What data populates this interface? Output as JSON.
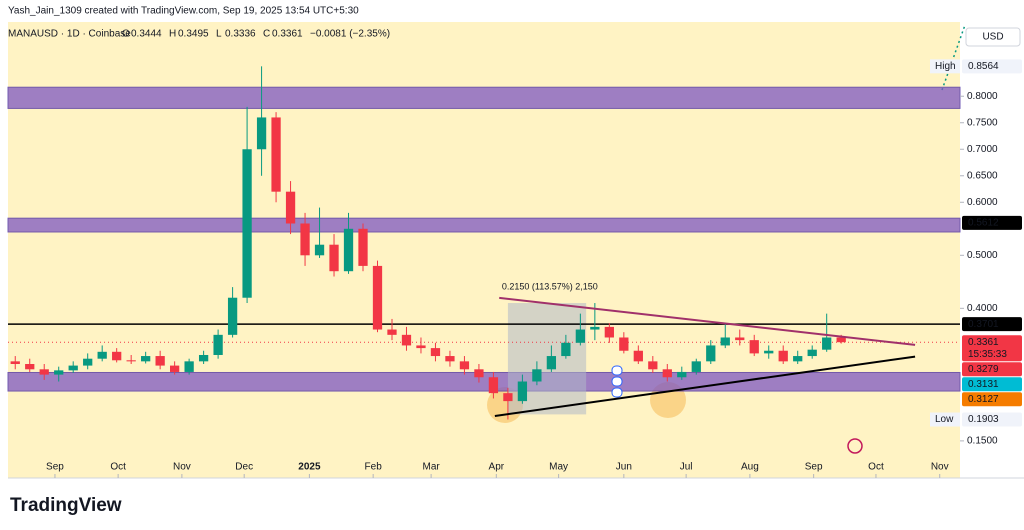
{
  "header": {
    "credit": "Yash_Jain_1309 created with TradingView.com, Sep 19, 2025 13:54 UTC+5:30",
    "symbol": "MANAUSD · 1D · Coinbase",
    "ohlc": [
      {
        "label": "O",
        "value": 0.3444
      },
      {
        "label": "H",
        "value": 0.3495
      },
      {
        "label": "L",
        "value": 0.3336
      },
      {
        "label": "C",
        "value": 0.3361
      }
    ],
    "change": "−0.0081 (−2.35%)"
  },
  "chart_data": {
    "type": "candlestick",
    "currency": "USD",
    "xlim": [
      0,
      65.7
    ],
    "ylim": [
      0.08,
      0.94
    ],
    "xticks": [
      {
        "value": 3.24,
        "label": "Sep"
      },
      {
        "value": 7.6,
        "label": "Oct"
      },
      {
        "value": 12.0,
        "label": "Nov"
      },
      {
        "value": 16.3,
        "label": "Dec"
      },
      {
        "value": 20.8,
        "label": "2025"
      },
      {
        "value": 25.2,
        "label": "Feb"
      },
      {
        "value": 29.2,
        "label": "Mar"
      },
      {
        "value": 33.7,
        "label": "Apr"
      },
      {
        "value": 38.0,
        "label": "May"
      },
      {
        "value": 42.5,
        "label": "Jun"
      },
      {
        "value": 46.8,
        "label": "Jul"
      },
      {
        "value": 51.2,
        "label": "Aug"
      },
      {
        "value": 55.6,
        "label": "Sep"
      },
      {
        "value": 59.9,
        "label": "Oct"
      },
      {
        "value": 64.3,
        "label": "Nov"
      }
    ],
    "yticks": [
      {
        "value": 0.15,
        "label": "0.1500"
      },
      {
        "value": 0.4,
        "label": "0.4000"
      },
      {
        "value": 0.5,
        "label": "0.5000"
      },
      {
        "value": 0.6,
        "label": "0.6000"
      },
      {
        "value": 0.65,
        "label": "0.6500"
      },
      {
        "value": 0.7,
        "label": "0.7000"
      },
      {
        "value": 0.75,
        "label": "0.7500"
      },
      {
        "value": 0.8,
        "label": "0.8000"
      }
    ],
    "up_color": "#089981",
    "down_color": "#f23645",
    "open": [
      0.3,
      0.295,
      0.285,
      0.275,
      0.283,
      0.292,
      0.305,
      0.318,
      0.302,
      0.3,
      0.31,
      0.292,
      0.28,
      0.3,
      0.312,
      0.35,
      0.42,
      0.7,
      0.76,
      0.62,
      0.56,
      0.5,
      0.52,
      0.47,
      0.55,
      0.48,
      0.36,
      0.35,
      0.33,
      0.325,
      0.31,
      0.3,
      0.285,
      0.27,
      0.24,
      0.225,
      0.262,
      0.285,
      0.31,
      0.335,
      0.36,
      0.365,
      0.345,
      0.32,
      0.3,
      0.285,
      0.27,
      0.28,
      0.3,
      0.33,
      0.345,
      0.34,
      0.315,
      0.32,
      0.3,
      0.31,
      0.322,
      0.345
    ],
    "high": [
      0.31,
      0.305,
      0.295,
      0.29,
      0.3,
      0.315,
      0.33,
      0.325,
      0.312,
      0.318,
      0.32,
      0.3,
      0.305,
      0.32,
      0.36,
      0.44,
      0.78,
      0.8564,
      0.77,
      0.64,
      0.58,
      0.59,
      0.54,
      0.58,
      0.56,
      0.49,
      0.38,
      0.365,
      0.345,
      0.335,
      0.32,
      0.31,
      0.295,
      0.28,
      0.25,
      0.275,
      0.3,
      0.33,
      0.35,
      0.39,
      0.41,
      0.372,
      0.355,
      0.33,
      0.31,
      0.295,
      0.29,
      0.305,
      0.34,
      0.37,
      0.36,
      0.35,
      0.33,
      0.33,
      0.32,
      0.33,
      0.39,
      0.35
    ],
    "low": [
      0.285,
      0.28,
      0.265,
      0.262,
      0.278,
      0.285,
      0.3,
      0.298,
      0.295,
      0.296,
      0.285,
      0.275,
      0.275,
      0.295,
      0.305,
      0.345,
      0.41,
      0.65,
      0.6,
      0.54,
      0.48,
      0.495,
      0.46,
      0.465,
      0.47,
      0.355,
      0.34,
      0.32,
      0.315,
      0.3,
      0.29,
      0.275,
      0.26,
      0.23,
      0.1903,
      0.22,
      0.255,
      0.28,
      0.305,
      0.33,
      0.34,
      0.335,
      0.315,
      0.295,
      0.278,
      0.262,
      0.265,
      0.275,
      0.295,
      0.325,
      0.33,
      0.31,
      0.305,
      0.295,
      0.295,
      0.305,
      0.318,
      0.3336
    ],
    "close": [
      0.295,
      0.285,
      0.275,
      0.283,
      0.292,
      0.305,
      0.318,
      0.302,
      0.3,
      0.31,
      0.292,
      0.28,
      0.3,
      0.312,
      0.35,
      0.42,
      0.7,
      0.76,
      0.62,
      0.56,
      0.5,
      0.52,
      0.47,
      0.55,
      0.48,
      0.36,
      0.35,
      0.33,
      0.325,
      0.31,
      0.3,
      0.285,
      0.27,
      0.24,
      0.225,
      0.262,
      0.285,
      0.31,
      0.335,
      0.36,
      0.365,
      0.345,
      0.32,
      0.3,
      0.285,
      0.27,
      0.28,
      0.3,
      0.33,
      0.345,
      0.34,
      0.315,
      0.32,
      0.3,
      0.31,
      0.322,
      0.345,
      0.3361
    ],
    "zones": [
      {
        "from": 0.777,
        "to": 0.817,
        "color": "#7e57c2"
      },
      {
        "from": 0.544,
        "to": 0.57,
        "color": "#7e57c2"
      },
      {
        "from": 0.244,
        "to": 0.279,
        "color": "#7e57c2"
      }
    ],
    "level": {
      "value": 0.3701,
      "color": "#000000"
    },
    "current_price": {
      "value": 0.3361,
      "color": "#f23645",
      "countdown": "15:35:33"
    },
    "trendlines": [
      {
        "from": [
          33.9,
          0.4197
        ],
        "to": [
          62.6,
          0.331
        ],
        "color": "#a0306a"
      },
      {
        "from": [
          33.6,
          0.197
        ],
        "to": [
          62.6,
          0.309
        ],
        "color": "#000000"
      }
    ],
    "measure": {
      "x": [
        34.5,
        39.9
      ],
      "y": [
        0.2,
        0.41
      ],
      "label": "0.2150 (113.57%) 2,150"
    },
    "price_labels": [
      {
        "value": 0.8564,
        "tag": "High",
        "bg": "#f0f3fa",
        "fg": "#131722"
      },
      {
        "value": 0.5612,
        "bg": "#000000",
        "fg": "#ffffff"
      },
      {
        "value": 0.3701,
        "bg": "#000000",
        "fg": "#ffffff"
      },
      {
        "value": 0.3279,
        "bg": "#f23645",
        "fg": "#ffffff"
      },
      {
        "value": 0.3131,
        "bg": "#00bcd4",
        "fg": "#ffffff"
      },
      {
        "value": 0.3127,
        "bg": "#f57c00",
        "fg": "#ffffff"
      },
      {
        "value": 0.1903,
        "tag": "Low",
        "bg": "#f0f3fa",
        "fg": "#131722"
      }
    ]
  },
  "footer": {
    "brand": "TradingView"
  }
}
